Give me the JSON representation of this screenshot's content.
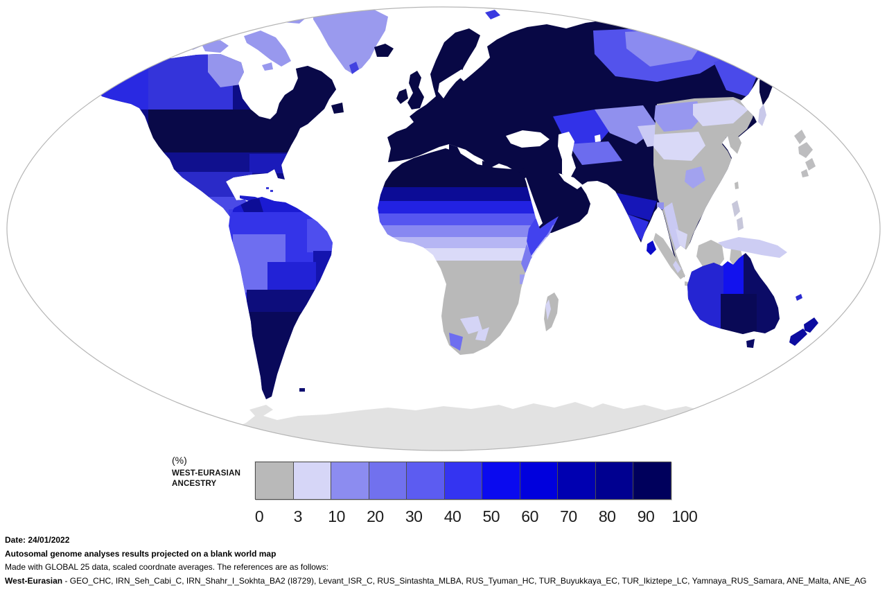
{
  "page": {
    "background": "#ffffff"
  },
  "legend": {
    "unit_label": "(%)",
    "title_line1": "WEST-EURASIAN",
    "title_line2": "ANCESTRY",
    "bins": [
      {
        "label": "0",
        "color": "#b9b9b9"
      },
      {
        "label": "3",
        "color": "#d6d6f7"
      },
      {
        "label": "10",
        "color": "#8c8cf0"
      },
      {
        "label": "20",
        "color": "#7171ee"
      },
      {
        "label": "30",
        "color": "#5c5cf1"
      },
      {
        "label": "40",
        "color": "#3434f1"
      },
      {
        "label": "50",
        "color": "#0a0aef"
      },
      {
        "label": "60",
        "color": "#0000dd"
      },
      {
        "label": "70",
        "color": "#0000b1"
      },
      {
        "label": "80",
        "color": "#000090"
      },
      {
        "label": "90",
        "color": "#00005c"
      }
    ],
    "tick_labels": [
      "0",
      "3",
      "10",
      "20",
      "30",
      "40",
      "50",
      "60",
      "70",
      "80",
      "90",
      "100"
    ]
  },
  "footer": {
    "date_line": "Date: 24/01/2022",
    "title_line": "Autosomal genome analyses results projected on a blank world map",
    "method_line": "Made with GLOBAL 25 data, scaled coordnate averages. The references are as follows:",
    "reference_label": "West-Eurasian",
    "reference_text": " - GEO_CHC, IRN_Seh_Cabi_C, IRN_Shahr_I_Sokhta_BA2 (I8729), Levant_ISR_C, RUS_Sintashta_MLBA, RUS_Tyuman_HC, TUR_Buyukkaya_EC, TUR_Ikiztepe_LC, Yamnaya_RUS_Samara, ANE_Malta, ANE_AG"
  },
  "map": {
    "type": "choropleth",
    "subject": "West-Eurasian ancestry percentage by region",
    "no_data_color": "#e2e2e2",
    "ocean_color": "#ffffff",
    "outline_color": "#b5b5b5",
    "regions_approx_percent": [
      {
        "region": "Europe",
        "value": "90-100"
      },
      {
        "region": "Middle East / Anatolia / Iran / Arabia",
        "value": "90-100"
      },
      {
        "region": "North Africa coast & Sahara north",
        "value": "80-100"
      },
      {
        "region": "Sahara (north to south gradient)",
        "value": "80 to 3"
      },
      {
        "region": "Sub-Saharan Africa",
        "value": "0"
      },
      {
        "region": "Horn of Africa",
        "value": "30-50"
      },
      {
        "region": "East African coast",
        "value": "10-30"
      },
      {
        "region": "South Africa (west cape)",
        "value": "10-30"
      },
      {
        "region": "European Russia / Western Siberia",
        "value": "90-100"
      },
      {
        "region": "Central Siberia",
        "value": "20-40"
      },
      {
        "region": "Eastern Siberia / Chukotka",
        "value": "80-100"
      },
      {
        "region": "Kazakhstan west",
        "value": "40-50"
      },
      {
        "region": "Kazakhstan east / Kyrgyzstan",
        "value": "3-20"
      },
      {
        "region": "Xinjiang",
        "value": "10-20"
      },
      {
        "region": "Tibet / Mongolia",
        "value": "3-10"
      },
      {
        "region": "Eastern China / Korea / Japan / SE Asia",
        "value": "0"
      },
      {
        "region": "Myanmar / Thailand patches",
        "value": "3-10"
      },
      {
        "region": "Pakistan / North India",
        "value": "80-100"
      },
      {
        "region": "Central India",
        "value": "60-80"
      },
      {
        "region": "South India / Sri Lanka",
        "value": "50-70"
      },
      {
        "region": "USA north & eastern Canada",
        "value": "90-100"
      },
      {
        "region": "USA south",
        "value": "70-90"
      },
      {
        "region": "Western Canada / Alaska",
        "value": "40-70"
      },
      {
        "region": "Northern Canada / Greenland",
        "value": "10-30"
      },
      {
        "region": "Mexico / Central America / Caribbean",
        "value": "40-70"
      },
      {
        "region": "Northern South America / Amazon",
        "value": "40-60"
      },
      {
        "region": "Peru / Bolivia",
        "value": "30-40"
      },
      {
        "region": "Southern South America",
        "value": "80-100"
      },
      {
        "region": "Australia west",
        "value": "60-70"
      },
      {
        "region": "Australia Northern Territory",
        "value": "50-60"
      },
      {
        "region": "Australia east",
        "value": "80-90"
      },
      {
        "region": "New Zealand",
        "value": "70-80"
      },
      {
        "region": "New Guinea / Indonesia",
        "value": "0-3"
      },
      {
        "region": "Antarctica",
        "value": "no data"
      }
    ]
  }
}
